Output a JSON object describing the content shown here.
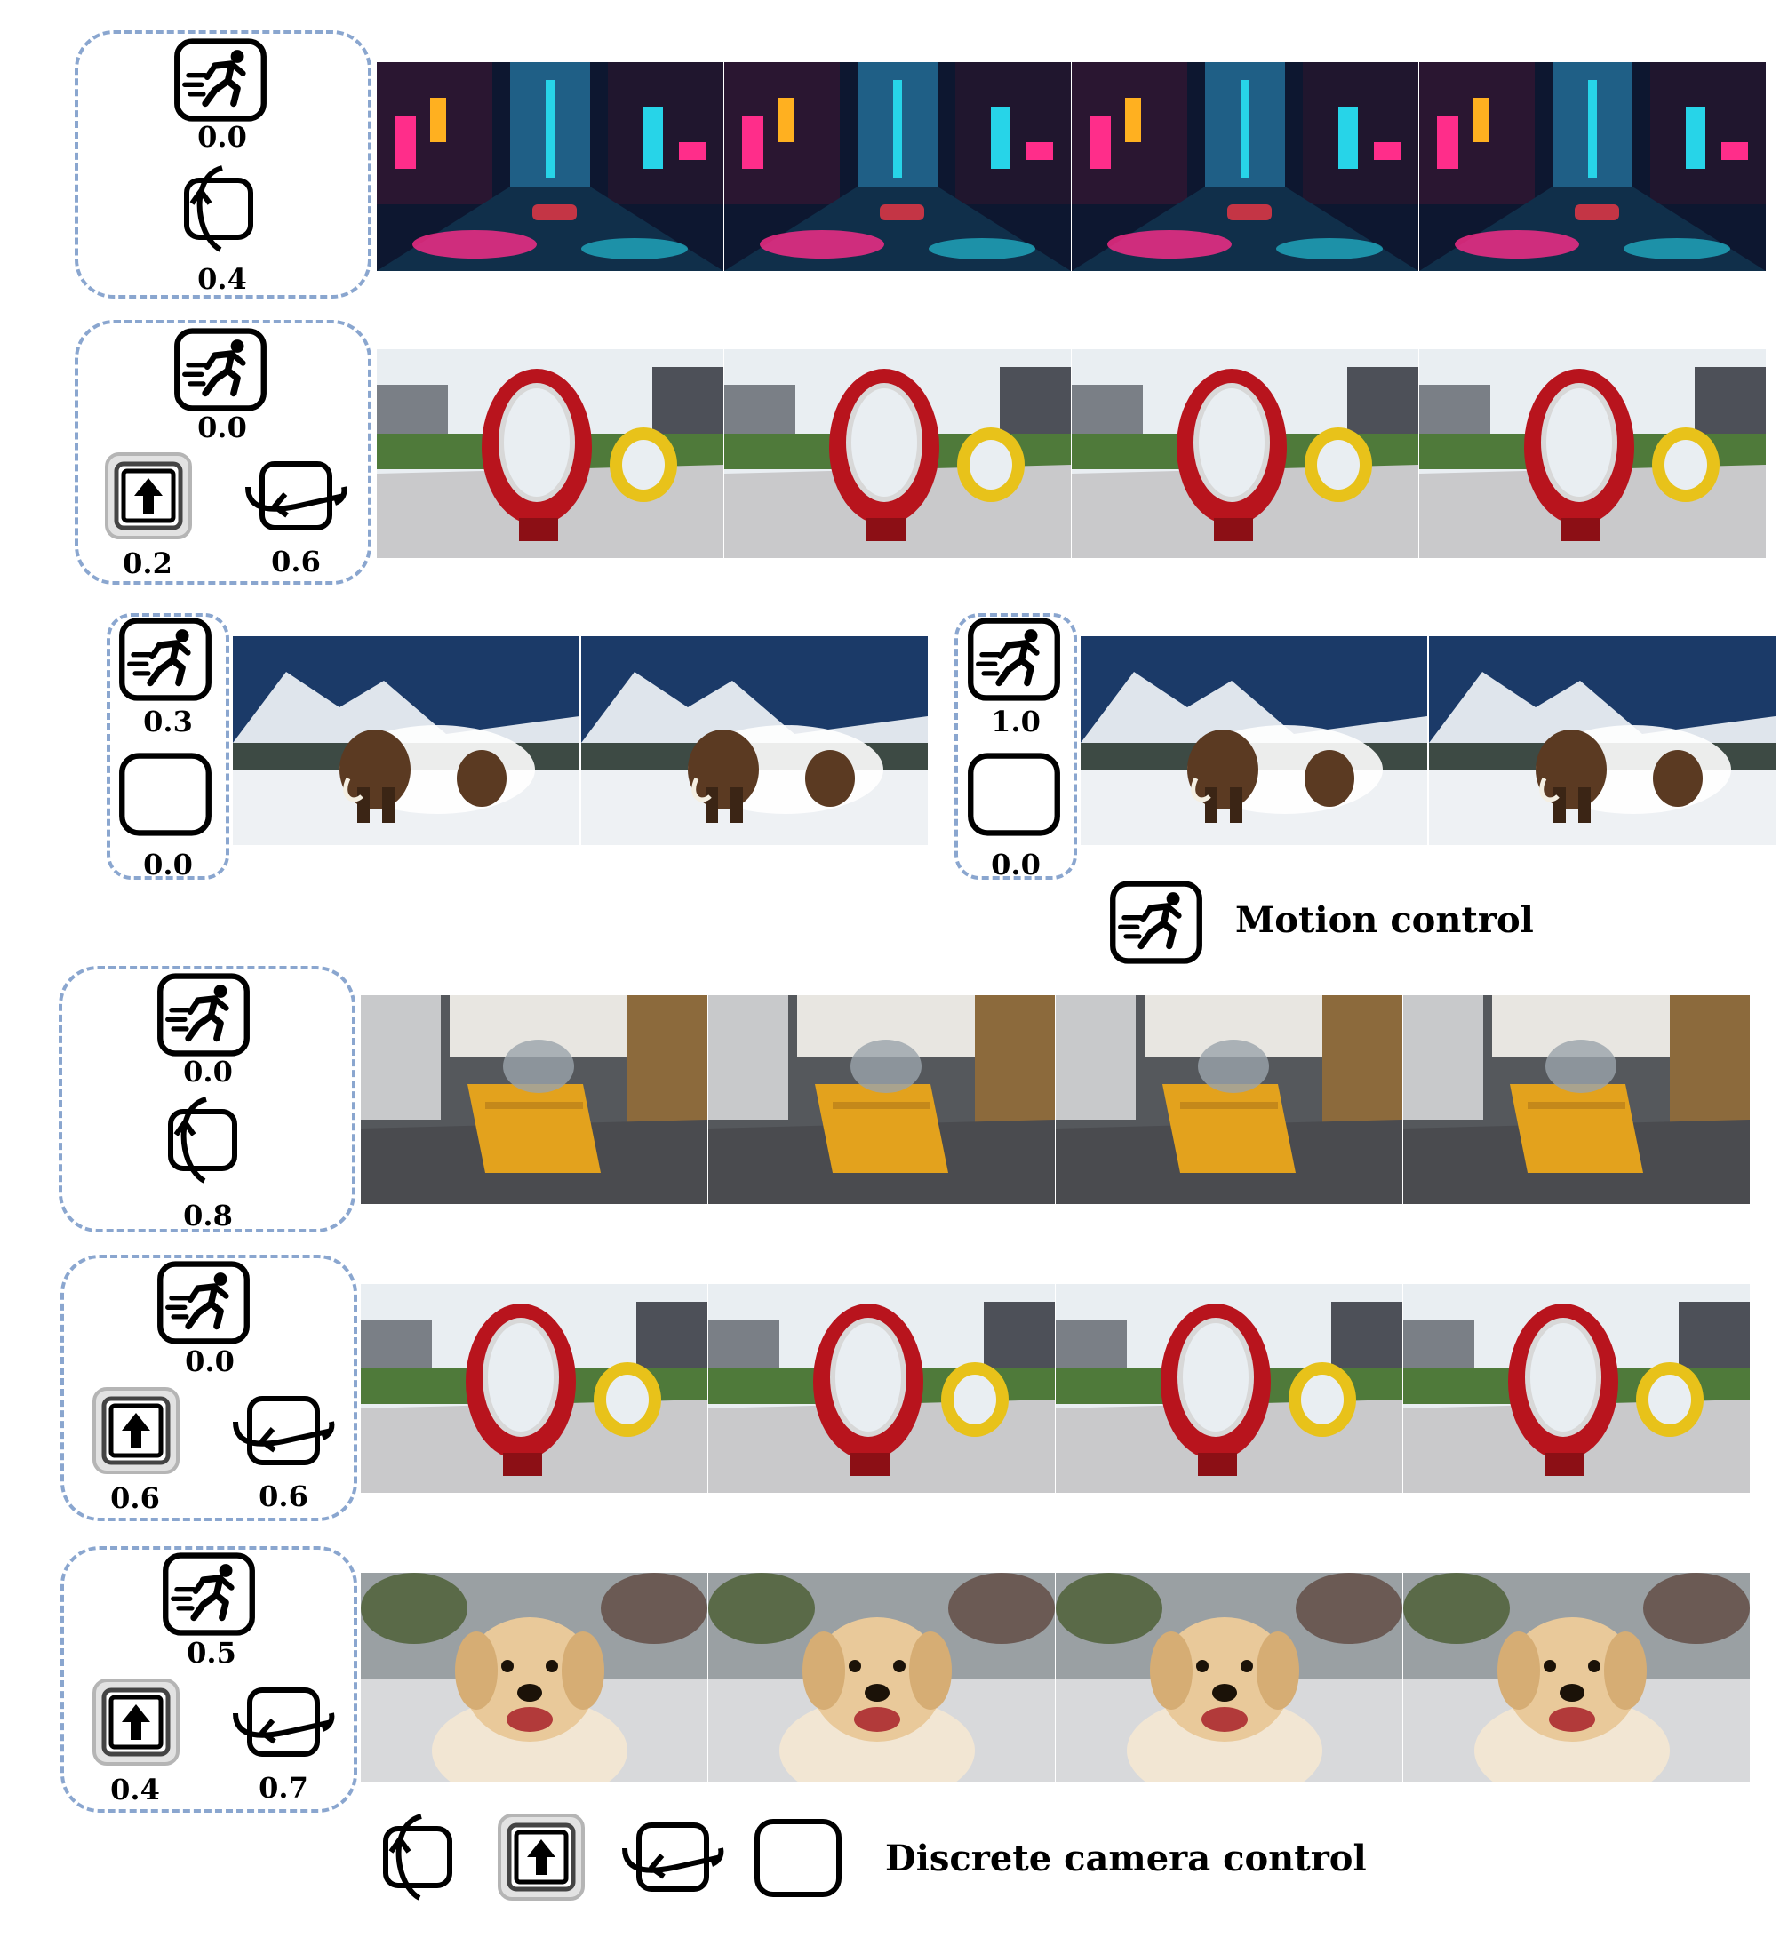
{
  "controls": {
    "motion_icon": "running-person-icon",
    "orbit_icon": "orbit-icon",
    "zoom_icon": "zoom-forward-icon",
    "pan_icon": "pan-left-icon",
    "static_icon": "static-box-icon"
  },
  "rows": [
    {
      "motion": "0.0",
      "orbit": "0.4",
      "scene": "neon city street"
    },
    {
      "motion": "0.0",
      "zoom": "0.2",
      "pan": "0.6",
      "scene": "red ring sculpture"
    },
    {
      "left": {
        "motion": "0.3",
        "static": "0.0"
      },
      "right": {
        "motion": "1.0",
        "static": "0.0"
      },
      "scene": "mammoths in snow"
    },
    {
      "motion": "0.0",
      "orbit": "0.8",
      "scene": "yellow shelf in store"
    },
    {
      "motion": "0.0",
      "zoom": "0.6",
      "pan": "0.6",
      "scene": "red ring sculpture"
    },
    {
      "motion": "0.5",
      "zoom": "0.4",
      "pan": "0.7",
      "scene": "golden retriever"
    }
  ],
  "legend": {
    "motion_label": "Motion control",
    "camera_label": "Discrete camera control"
  },
  "colors": {
    "panel_border": "#8aa6cf",
    "neon_pink": "#ff2d8a",
    "neon_cyan": "#27d4e8",
    "ring_red": "#b8141d",
    "ring_yellow": "#e8c21a",
    "shelf_yellow": "#e3a21d",
    "dog_fur": "#e9c99a"
  }
}
